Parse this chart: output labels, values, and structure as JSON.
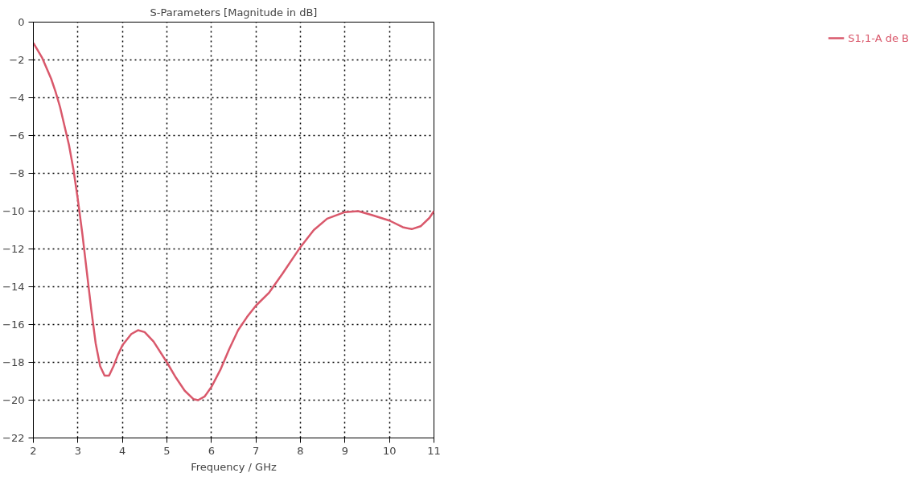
{
  "chart_data": {
    "type": "line",
    "title": "S-Parameters [Magnitude in dB]",
    "xlabel": "Frequency / GHz",
    "xlim": [
      2,
      11
    ],
    "xticks": [
      2,
      3,
      4,
      5,
      6,
      7,
      8,
      9,
      10,
      11
    ],
    "ylim": [
      -22,
      0
    ],
    "yticks": [
      0,
      -2,
      -4,
      -6,
      -8,
      -10,
      -12,
      -14,
      -16,
      -18,
      -20,
      -22
    ],
    "grid": true,
    "legend": "right",
    "marker": "none",
    "line_style": "solid",
    "series": [
      {
        "name": "S1,1-A de B",
        "color": "#d9586b",
        "x": [
          2,
          2.2,
          2.4,
          2.5,
          2.6,
          2.8,
          2.9,
          3.0,
          3.1,
          3.2,
          3.3,
          3.4,
          3.5,
          3.6,
          3.7,
          3.8,
          3.9,
          4.0,
          4.2,
          4.35,
          4.5,
          4.7,
          5.0,
          5.2,
          5.4,
          5.6,
          5.7,
          5.85,
          6.0,
          6.2,
          6.4,
          6.6,
          6.8,
          7.0,
          7.3,
          7.6,
          8.0,
          8.3,
          8.6,
          9.0,
          9.3,
          9.6,
          10.0,
          10.3,
          10.5,
          10.7,
          10.9,
          11.0
        ],
        "values": [
          -1.1,
          -1.9,
          -3.0,
          -3.7,
          -4.5,
          -6.5,
          -7.8,
          -9.4,
          -11.2,
          -13.2,
          -15.2,
          -17.0,
          -18.2,
          -18.7,
          -18.7,
          -18.2,
          -17.6,
          -17.1,
          -16.5,
          -16.3,
          -16.4,
          -16.9,
          -18.0,
          -18.8,
          -19.5,
          -19.95,
          -20.0,
          -19.8,
          -19.3,
          -18.4,
          -17.3,
          -16.3,
          -15.6,
          -15.0,
          -14.3,
          -13.3,
          -11.9,
          -11.0,
          -10.4,
          -10.05,
          -10.0,
          -10.2,
          -10.5,
          -10.85,
          -10.95,
          -10.8,
          -10.35,
          -10.0
        ]
      }
    ]
  }
}
